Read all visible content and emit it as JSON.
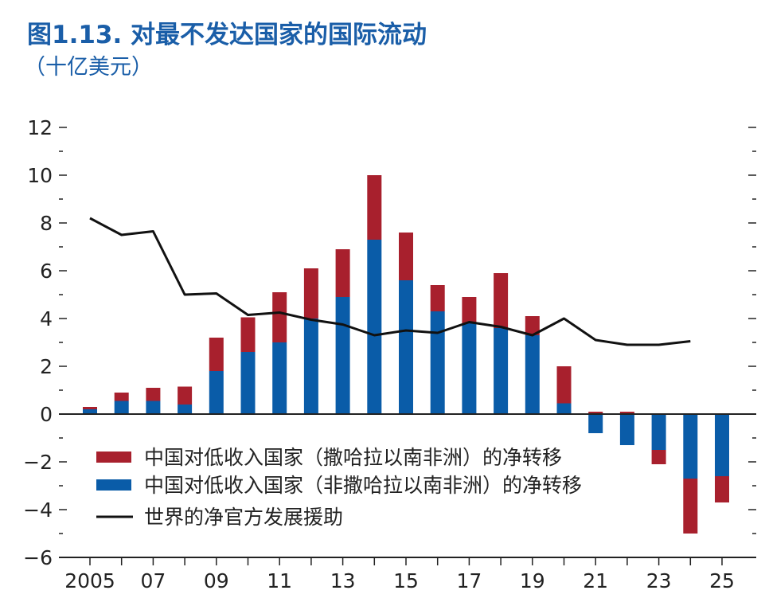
{
  "title": "图1.13. 对最不发达国家的国际流动",
  "subtitle": "（十亿美元）",
  "chart_data": {
    "type": "bar",
    "stacked": true,
    "x": [
      2005,
      2006,
      2007,
      2008,
      2009,
      2010,
      2011,
      2012,
      2013,
      2014,
      2015,
      2016,
      2017,
      2018,
      2019,
      2020,
      2021,
      2022,
      2023,
      2024,
      2025
    ],
    "x_tick_labels": [
      "2005",
      "07",
      "09",
      "11",
      "13",
      "15",
      "17",
      "19",
      "21",
      "23",
      "25"
    ],
    "x_tick_values": [
      2005,
      2007,
      2009,
      2011,
      2013,
      2015,
      2017,
      2019,
      2021,
      2023,
      2025
    ],
    "ylim": [
      -6,
      12
    ],
    "y_ticks": [
      12,
      10,
      8,
      6,
      4,
      2,
      0,
      -2,
      -4,
      -6
    ],
    "y_tick_labels": [
      "12",
      "10",
      "8",
      "6",
      "4",
      "2",
      "0",
      "−2",
      "−4",
      "−6"
    ],
    "series": [
      {
        "name": "中国对低收入国家（非撒哈拉以南非洲）的净转移",
        "kind": "bar",
        "color": "#0a5ca8",
        "values": [
          0.2,
          0.55,
          0.55,
          0.4,
          1.8,
          2.6,
          3.0,
          4.0,
          4.9,
          7.3,
          5.6,
          4.3,
          3.8,
          3.6,
          3.3,
          0.45,
          -0.8,
          -1.3,
          -1.5,
          -2.7,
          -2.6
        ]
      },
      {
        "name": "中国对低收入国家（撒哈拉以南非洲）的净转移",
        "kind": "bar",
        "color": "#a8202d",
        "values": [
          0.1,
          0.35,
          0.55,
          0.75,
          1.4,
          1.45,
          2.1,
          2.1,
          2.0,
          2.7,
          2.0,
          1.1,
          1.1,
          2.3,
          0.8,
          1.55,
          0.1,
          0.1,
          -0.6,
          -2.3,
          -1.1
        ]
      },
      {
        "name": "世界的净官方发展援助",
        "kind": "line",
        "color": "#111111",
        "x": [
          2005,
          2006,
          2007,
          2008,
          2009,
          2010,
          2011,
          2012,
          2013,
          2014,
          2015,
          2016,
          2017,
          2018,
          2019,
          2020,
          2021,
          2022,
          2023,
          2024
        ],
        "values": [
          8.2,
          7.5,
          7.65,
          5.0,
          5.05,
          4.15,
          4.25,
          3.95,
          3.75,
          3.3,
          3.5,
          3.4,
          3.85,
          3.65,
          3.3,
          4.0,
          3.1,
          2.9,
          2.9,
          3.05
        ]
      }
    ],
    "legend": {
      "position": "bottom-left",
      "entries": [
        {
          "label": "中国对低收入国家（撒哈拉以南非洲）的净转移",
          "color": "#a8202d",
          "kind": "bar"
        },
        {
          "label": "中国对低收入国家（非撒哈拉以南非洲）的净转移",
          "color": "#0a5ca8",
          "kind": "bar"
        },
        {
          "label": "世界的净官方发展援助",
          "color": "#111111",
          "kind": "line"
        }
      ]
    }
  }
}
